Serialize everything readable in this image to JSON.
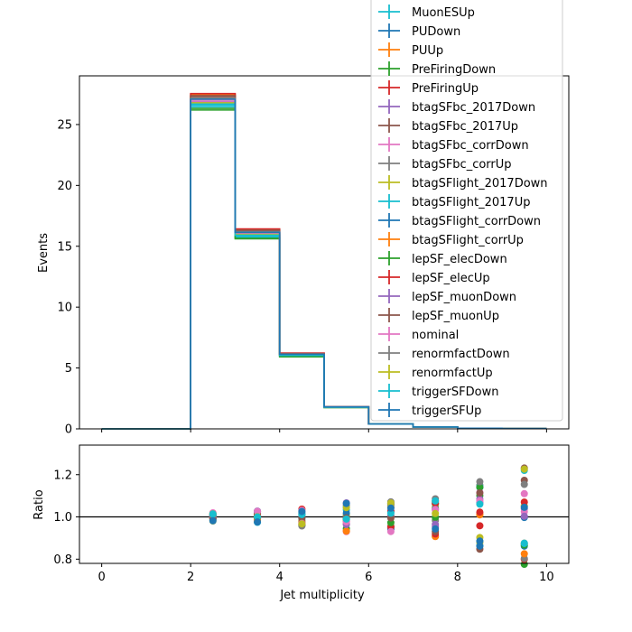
{
  "chart_data": [
    {
      "type": "line",
      "subtype": "step-histogram",
      "title": "",
      "xlabel": "",
      "ylabel": "Events",
      "xlim": [
        -0.5,
        10.5
      ],
      "ylim": [
        0,
        29
      ],
      "bin_edges": [
        0,
        1,
        2,
        3,
        4,
        5,
        6,
        7,
        8,
        9,
        10
      ],
      "yticks": [
        "0",
        "5",
        "10",
        "15",
        "20",
        "25"
      ],
      "grid": false,
      "legend_position": "top-right",
      "legend": [
        "MuonESUp",
        "PUDown",
        "PUUp",
        "PreFiringDown",
        "PreFiringUp",
        "btagSFbc_2017Down",
        "btagSFbc_2017Up",
        "btagSFbc_corrDown",
        "btagSFbc_corrUp",
        "btagSFlight_2017Down",
        "btagSFlight_2017Up",
        "btagSFlight_corrDown",
        "btagSFlight_corrUp",
        "lepSF_elecDown",
        "lepSF_elecUp",
        "lepSF_muonDown",
        "lepSF_muonUp",
        "nominal",
        "renormfactDown",
        "renormfactUp",
        "triggerSFDown",
        "triggerSFUp"
      ],
      "series_colors": [
        "#17becf",
        "#1f77b4",
        "#ff7f0e",
        "#2ca02c",
        "#d62728",
        "#9467bd",
        "#8c564b",
        "#e377c2",
        "#7f7f7f",
        "#bcbd22",
        "#17becf",
        "#1f77b4",
        "#ff7f0e",
        "#2ca02c",
        "#d62728",
        "#9467bd",
        "#8c564b",
        "#e377c2",
        "#7f7f7f",
        "#bcbd22",
        "#17becf",
        "#1f77b4"
      ],
      "nominal_values": [
        0,
        0,
        27.0,
        16.1,
        6.1,
        1.8,
        0.4,
        0.15,
        0.05,
        0.02
      ]
    },
    {
      "type": "scatter",
      "title": "",
      "xlabel": "Jet multiplicity",
      "ylabel": "Ratio",
      "xlim": [
        -0.5,
        10.5
      ],
      "ylim": [
        0.78,
        1.34
      ],
      "xticks": [
        "0",
        "2",
        "4",
        "6",
        "8",
        "10"
      ],
      "yticks": [
        "0.8",
        "1.0",
        "1.2"
      ],
      "reference_line": 1.0,
      "x": [
        2.5,
        3.5,
        4.5,
        5.5,
        6.5,
        7.5,
        8.5,
        9.5
      ]
    }
  ]
}
